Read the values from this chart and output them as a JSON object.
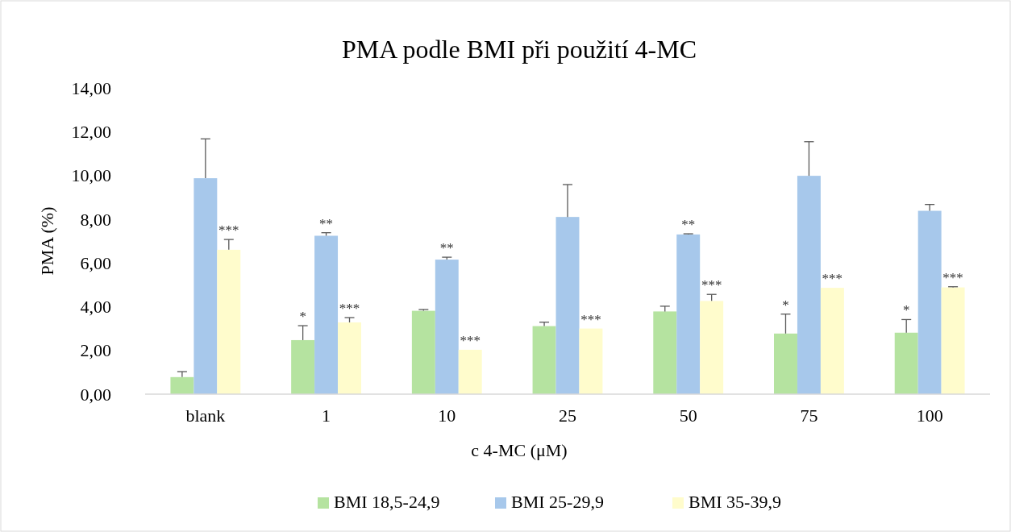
{
  "chart_data": {
    "type": "bar",
    "title": "PMA podle BMI při použití 4-MC",
    "xlabel": "c 4-MC (μM)",
    "ylabel": "PMA (%)",
    "categories": [
      "blank",
      "1",
      "10",
      "25",
      "50",
      "75",
      "100"
    ],
    "series": [
      {
        "name": "BMI 18,5-24,9",
        "color": "#b5e3a0",
        "values": [
          0.78,
          2.47,
          3.81,
          3.11,
          3.78,
          2.77,
          2.81
        ],
        "errors": [
          0.25,
          0.66,
          0.06,
          0.18,
          0.24,
          0.89,
          0.6
        ],
        "value_labels": [
          null,
          "*",
          null,
          null,
          null,
          "*",
          "*"
        ]
      },
      {
        "name": "BMI 25-29,9",
        "color": "#a7c8eb",
        "values": [
          9.87,
          7.24,
          6.15,
          8.1,
          7.3,
          9.98,
          8.38
        ],
        "errors": [
          1.8,
          0.14,
          0.11,
          1.48,
          0.03,
          1.56,
          0.29
        ],
        "value_labels": [
          null,
          "**",
          "**",
          null,
          "**",
          null,
          null
        ]
      },
      {
        "name": "BMI 35-39,9",
        "color": "#fffccc",
        "values": [
          6.6,
          3.28,
          2.03,
          3.0,
          4.26,
          4.86,
          4.88
        ],
        "errors": [
          0.47,
          0.22,
          null,
          null,
          0.3,
          null,
          0.03
        ],
        "value_labels": [
          "***",
          "***",
          "***",
          "***",
          "***",
          "***",
          "***"
        ]
      }
    ],
    "ylim": [
      0,
      14
    ],
    "yticks": [
      {
        "value": 0,
        "label": "0,00"
      },
      {
        "value": 2,
        "label": "2,00"
      },
      {
        "value": 4,
        "label": "4,00"
      },
      {
        "value": 6,
        "label": "6,00"
      },
      {
        "value": 8,
        "label": "8,00"
      },
      {
        "value": 10,
        "label": "10,00"
      },
      {
        "value": 12,
        "label": "12,00"
      },
      {
        "value": 14,
        "label": "14,00"
      }
    ],
    "legend": "bottom"
  }
}
